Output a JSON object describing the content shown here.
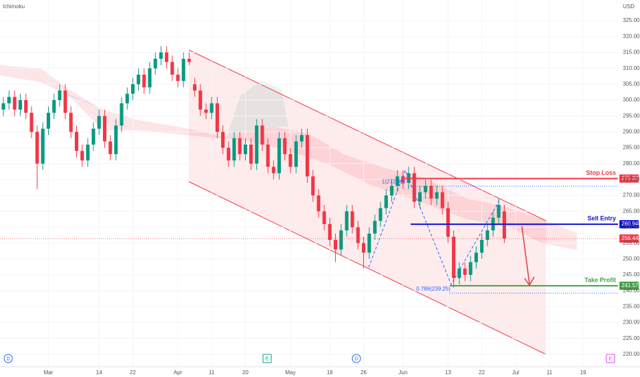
{
  "chart_data": {
    "type": "candlestick",
    "indicator": "Ichimoku",
    "currency": "USD",
    "up_color": "#089981",
    "down_color": "#f23645",
    "open": [
      297,
      299,
      301,
      297,
      300,
      296,
      290,
      280,
      291,
      296,
      300,
      303,
      296,
      290,
      284,
      281,
      286,
      291,
      295,
      287,
      283,
      292,
      299,
      302,
      305,
      308,
      304,
      310,
      313,
      315,
      312,
      308,
      306,
      313,
      305,
      303,
      297,
      296,
      299,
      290,
      285,
      281,
      288,
      283,
      286,
      280,
      292,
      286,
      279,
      277,
      288,
      283,
      279,
      287,
      289,
      276,
      270,
      265,
      261,
      256,
      253,
      259,
      265,
      260,
      255,
      252,
      258,
      262,
      266,
      270,
      273,
      276,
      274,
      277,
      268,
      271,
      273,
      269,
      271,
      266,
      257,
      244,
      247,
      245,
      249,
      252,
      256,
      259,
      263,
      265
    ],
    "high": [
      301,
      303,
      303,
      302,
      302,
      298,
      292,
      293,
      298,
      302,
      305,
      305,
      298,
      292,
      286,
      288,
      293,
      297,
      297,
      289,
      294,
      301,
      304,
      307,
      310,
      310,
      312,
      315,
      317,
      317,
      314,
      310,
      315,
      315,
      307,
      305,
      299,
      301,
      301,
      292,
      287,
      290,
      290,
      288,
      288,
      294,
      294,
      288,
      281,
      290,
      290,
      285,
      289,
      291,
      291,
      278,
      272,
      267,
      263,
      258,
      261,
      267,
      267,
      262,
      257,
      260,
      264,
      268,
      272,
      275,
      278,
      278,
      279,
      279,
      273,
      275,
      275,
      273,
      273,
      268,
      259,
      249,
      249,
      251,
      254,
      258,
      261,
      265,
      269,
      267
    ],
    "low": [
      295,
      297,
      295,
      295,
      294,
      288,
      272,
      278,
      289,
      294,
      298,
      294,
      288,
      282,
      279,
      279,
      284,
      289,
      285,
      281,
      281,
      290,
      297,
      300,
      303,
      302,
      302,
      308,
      311,
      310,
      306,
      304,
      304,
      311,
      301,
      295,
      294,
      294,
      288,
      283,
      279,
      279,
      281,
      281,
      278,
      278,
      284,
      277,
      275,
      275,
      281,
      277,
      277,
      285,
      274,
      268,
      263,
      259,
      254,
      249,
      251,
      257,
      258,
      253,
      247,
      250,
      256,
      260,
      264,
      268,
      271,
      272,
      272,
      266,
      266,
      269,
      267,
      267,
      264,
      255,
      241,
      242,
      243,
      243,
      247,
      250,
      254,
      257,
      261,
      255
    ],
    "close": [
      299,
      301,
      297,
      300,
      296,
      290,
      280,
      291,
      296,
      300,
      303,
      296,
      290,
      284,
      281,
      286,
      291,
      295,
      287,
      283,
      292,
      299,
      302,
      305,
      308,
      304,
      310,
      313,
      315,
      312,
      308,
      306,
      313,
      312,
      303,
      297,
      296,
      299,
      290,
      285,
      281,
      288,
      283,
      286,
      280,
      292,
      286,
      279,
      277,
      288,
      283,
      279,
      287,
      289,
      276,
      270,
      265,
      261,
      256,
      253,
      259,
      265,
      260,
      255,
      252,
      258,
      262,
      266,
      270,
      273,
      276,
      274,
      277,
      268,
      271,
      273,
      269,
      271,
      266,
      257,
      244,
      247,
      245,
      249,
      252,
      256,
      259,
      263,
      267,
      256.44
    ],
    "xlim": [
      -0.6,
      109.2
    ],
    "xticks": [
      {
        "value": 8,
        "label": "Mar"
      },
      {
        "value": 17,
        "label": "14"
      },
      {
        "value": 23,
        "label": "22"
      },
      {
        "value": 31,
        "label": "Apr"
      },
      {
        "value": 37,
        "label": "11"
      },
      {
        "value": 43,
        "label": "20"
      },
      {
        "value": 51,
        "label": "May"
      },
      {
        "value": 58,
        "label": "16"
      },
      {
        "value": 64,
        "label": "26"
      },
      {
        "value": 71,
        "label": "Jun"
      },
      {
        "value": 79,
        "label": "13"
      },
      {
        "value": 85,
        "label": "22"
      },
      {
        "value": 91,
        "label": "Jul"
      },
      {
        "value": 97,
        "label": "11"
      },
      {
        "value": 103,
        "label": "19"
      }
    ],
    "ylim": [
      216.1,
      331.5
    ],
    "yticks": [
      {
        "value": 220,
        "label": "220.00"
      },
      {
        "value": 225,
        "label": "225.00"
      },
      {
        "value": 230,
        "label": "230.00"
      },
      {
        "value": 235,
        "label": "235.00"
      },
      {
        "value": 240,
        "label": "240.00"
      },
      {
        "value": 245,
        "label": "245.00"
      },
      {
        "value": 250,
        "label": "250.00"
      },
      {
        "value": 255,
        "label": "255.00"
      },
      {
        "value": 260,
        "label": "260.00"
      },
      {
        "value": 265,
        "label": "265.00"
      },
      {
        "value": 270,
        "label": "270.00"
      },
      {
        "value": 275,
        "label": "275.00"
      },
      {
        "value": 280,
        "label": "280.00"
      },
      {
        "value": 285,
        "label": "285.00"
      },
      {
        "value": 290,
        "label": "290.00"
      },
      {
        "value": 295,
        "label": "295.00"
      },
      {
        "value": 300,
        "label": "300.00"
      },
      {
        "value": 305,
        "label": "305.00"
      },
      {
        "value": 310,
        "label": "310.00"
      },
      {
        "value": 315,
        "label": "315.00"
      },
      {
        "value": 320,
        "label": "320.00"
      },
      {
        "value": 325,
        "label": "325.00"
      }
    ],
    "levels": [
      {
        "name": "Stop Loss",
        "value": 275.32,
        "color": "#f23645"
      },
      {
        "name": "Sell Entry",
        "value": 260.94,
        "color": "#1010d0"
      },
      {
        "name": "Take Profit",
        "value": 241.57,
        "color": "#43a047"
      }
    ],
    "last_price": 256.44,
    "fib": [
      {
        "label": "1(272.92)",
        "value": 272.92
      },
      {
        "label": "0.786(239.25)",
        "value": 239.25
      }
    ],
    "events": [
      "D",
      "E",
      "D",
      "E"
    ]
  }
}
